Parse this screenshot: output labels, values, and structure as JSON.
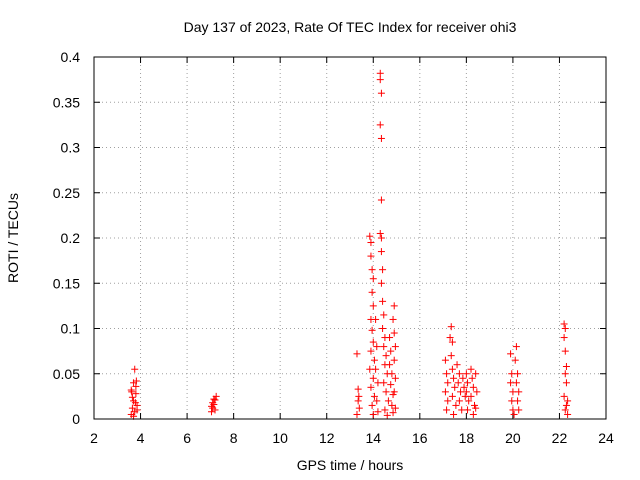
{
  "chart_data": {
    "type": "scatter",
    "title": "Day 137 of 2023, Rate Of TEC Index for receiver ohi3",
    "xlabel": "GPS time / hours",
    "ylabel": "ROTI / TECUs",
    "xlim": [
      2,
      24
    ],
    "ylim": [
      0,
      0.4
    ],
    "xticks": [
      2,
      4,
      6,
      8,
      10,
      12,
      14,
      16,
      18,
      20,
      22,
      24
    ],
    "xtick_labels": [
      "2",
      "4",
      "6",
      "8",
      "10",
      "12",
      "14",
      "16",
      "18",
      "20",
      "22",
      "24"
    ],
    "yticks": [
      0,
      0.05,
      0.1,
      0.15,
      0.2,
      0.25,
      0.3,
      0.35,
      0.4
    ],
    "ytick_labels": [
      "0",
      "0.05",
      "0.1",
      "0.15",
      "0.2",
      "0.25",
      "0.3",
      "0.35",
      "0.4"
    ],
    "grid": true,
    "marker": "plus",
    "color": "#ff0000",
    "series": [
      {
        "points": [
          [
            3.6,
            0.005
          ],
          [
            3.65,
            0.012
          ],
          [
            3.7,
            0.02
          ],
          [
            3.75,
            0.008
          ],
          [
            3.8,
            0.028
          ],
          [
            3.85,
            0.015
          ],
          [
            3.6,
            0.032
          ],
          [
            3.7,
            0.04
          ],
          [
            3.75,
            0.055
          ],
          [
            3.8,
            0.036
          ],
          [
            3.65,
            0.024
          ],
          [
            3.85,
            0.01
          ],
          [
            3.7,
            0.003
          ],
          [
            3.78,
            0.018
          ],
          [
            3.62,
            0.03
          ],
          [
            3.82,
            0.042
          ],
          [
            7.05,
            0.008
          ],
          [
            7.1,
            0.012
          ],
          [
            7.15,
            0.016
          ],
          [
            7.2,
            0.021
          ],
          [
            7.25,
            0.025
          ],
          [
            7.1,
            0.018
          ],
          [
            7.2,
            0.01
          ],
          [
            7.15,
            0.022
          ],
          [
            7.05,
            0.014
          ],
          [
            13.3,
            0.072
          ],
          [
            13.35,
            0.033
          ],
          [
            13.35,
            0.02
          ],
          [
            13.4,
            0.012
          ],
          [
            13.3,
            0.005
          ],
          [
            13.38,
            0.025
          ],
          [
            13.85,
            0.202
          ],
          [
            13.9,
            0.195
          ],
          [
            13.9,
            0.18
          ],
          [
            13.95,
            0.165
          ],
          [
            14.0,
            0.155
          ],
          [
            13.95,
            0.14
          ],
          [
            14.0,
            0.125
          ],
          [
            13.9,
            0.11
          ],
          [
            13.95,
            0.098
          ],
          [
            14.0,
            0.085
          ],
          [
            13.9,
            0.075
          ],
          [
            14.05,
            0.065
          ],
          [
            13.85,
            0.055
          ],
          [
            14.0,
            0.045
          ],
          [
            13.9,
            0.035
          ],
          [
            14.05,
            0.025
          ],
          [
            13.95,
            0.015
          ],
          [
            14.0,
            0.005
          ],
          [
            14.1,
            0.11
          ],
          [
            14.15,
            0.08
          ],
          [
            14.1,
            0.055
          ],
          [
            14.2,
            0.04
          ],
          [
            14.15,
            0.02
          ],
          [
            14.2,
            0.008
          ],
          [
            14.3,
            0.382
          ],
          [
            14.3,
            0.375
          ],
          [
            14.35,
            0.36
          ],
          [
            14.3,
            0.325
          ],
          [
            14.35,
            0.31
          ],
          [
            14.35,
            0.242
          ],
          [
            14.3,
            0.205
          ],
          [
            14.35,
            0.2
          ],
          [
            14.35,
            0.185
          ],
          [
            14.4,
            0.165
          ],
          [
            14.35,
            0.15
          ],
          [
            14.4,
            0.13
          ],
          [
            14.45,
            0.115
          ],
          [
            14.4,
            0.1
          ],
          [
            14.5,
            0.09
          ],
          [
            14.45,
            0.08
          ],
          [
            14.55,
            0.07
          ],
          [
            14.5,
            0.06
          ],
          [
            14.6,
            0.05
          ],
          [
            14.45,
            0.04
          ],
          [
            14.55,
            0.03
          ],
          [
            14.65,
            0.02
          ],
          [
            14.5,
            0.01
          ],
          [
            14.6,
            0.004
          ],
          [
            14.7,
            0.09
          ],
          [
            14.75,
            0.075
          ],
          [
            14.7,
            0.06
          ],
          [
            14.8,
            0.05
          ],
          [
            14.75,
            0.038
          ],
          [
            14.85,
            0.027
          ],
          [
            14.8,
            0.015
          ],
          [
            14.85,
            0.007
          ],
          [
            14.9,
            0.125
          ],
          [
            14.85,
            0.11
          ],
          [
            14.9,
            0.095
          ],
          [
            14.95,
            0.08
          ],
          [
            14.9,
            0.065
          ],
          [
            14.95,
            0.045
          ],
          [
            14.9,
            0.03
          ],
          [
            14.95,
            0.012
          ],
          [
            17.1,
            0.065
          ],
          [
            17.15,
            0.05
          ],
          [
            17.2,
            0.04
          ],
          [
            17.1,
            0.03
          ],
          [
            17.2,
            0.02
          ],
          [
            17.15,
            0.01
          ],
          [
            17.3,
            0.09
          ],
          [
            17.35,
            0.102
          ],
          [
            17.4,
            0.085
          ],
          [
            17.35,
            0.07
          ],
          [
            17.4,
            0.055
          ],
          [
            17.45,
            0.045
          ],
          [
            17.5,
            0.035
          ],
          [
            17.4,
            0.025
          ],
          [
            17.55,
            0.015
          ],
          [
            17.45,
            0.005
          ],
          [
            17.6,
            0.06
          ],
          [
            17.7,
            0.05
          ],
          [
            17.65,
            0.04
          ],
          [
            17.75,
            0.03
          ],
          [
            17.7,
            0.02
          ],
          [
            17.8,
            0.01
          ],
          [
            17.85,
            0.045
          ],
          [
            17.9,
            0.035
          ],
          [
            17.95,
            0.025
          ],
          [
            18.0,
            0.05
          ],
          [
            18.05,
            0.04
          ],
          [
            18.0,
            0.03
          ],
          [
            18.1,
            0.02
          ],
          [
            18.05,
            0.01
          ],
          [
            18.2,
            0.055
          ],
          [
            18.25,
            0.045
          ],
          [
            18.3,
            0.035
          ],
          [
            18.2,
            0.025
          ],
          [
            18.35,
            0.015
          ],
          [
            18.3,
            0.005
          ],
          [
            18.4,
            0.05
          ],
          [
            18.45,
            0.03
          ],
          [
            18.4,
            0.012
          ],
          [
            19.9,
            0.072
          ],
          [
            19.95,
            0.05
          ],
          [
            19.9,
            0.04
          ],
          [
            20.0,
            0.03
          ],
          [
            19.95,
            0.02
          ],
          [
            20.0,
            0.01
          ],
          [
            20.05,
            0.005
          ],
          [
            20.1,
            0.065
          ],
          [
            20.15,
            0.08
          ],
          [
            20.2,
            0.05
          ],
          [
            20.15,
            0.04
          ],
          [
            20.25,
            0.03
          ],
          [
            20.2,
            0.02
          ],
          [
            20.25,
            0.01
          ],
          [
            22.2,
            0.105
          ],
          [
            22.25,
            0.1
          ],
          [
            22.2,
            0.09
          ],
          [
            22.25,
            0.075
          ],
          [
            22.3,
            0.058
          ],
          [
            22.25,
            0.05
          ],
          [
            22.3,
            0.04
          ],
          [
            22.2,
            0.025
          ],
          [
            22.35,
            0.02
          ],
          [
            22.3,
            0.015
          ],
          [
            22.25,
            0.01
          ],
          [
            22.35,
            0.005
          ]
        ]
      }
    ]
  }
}
